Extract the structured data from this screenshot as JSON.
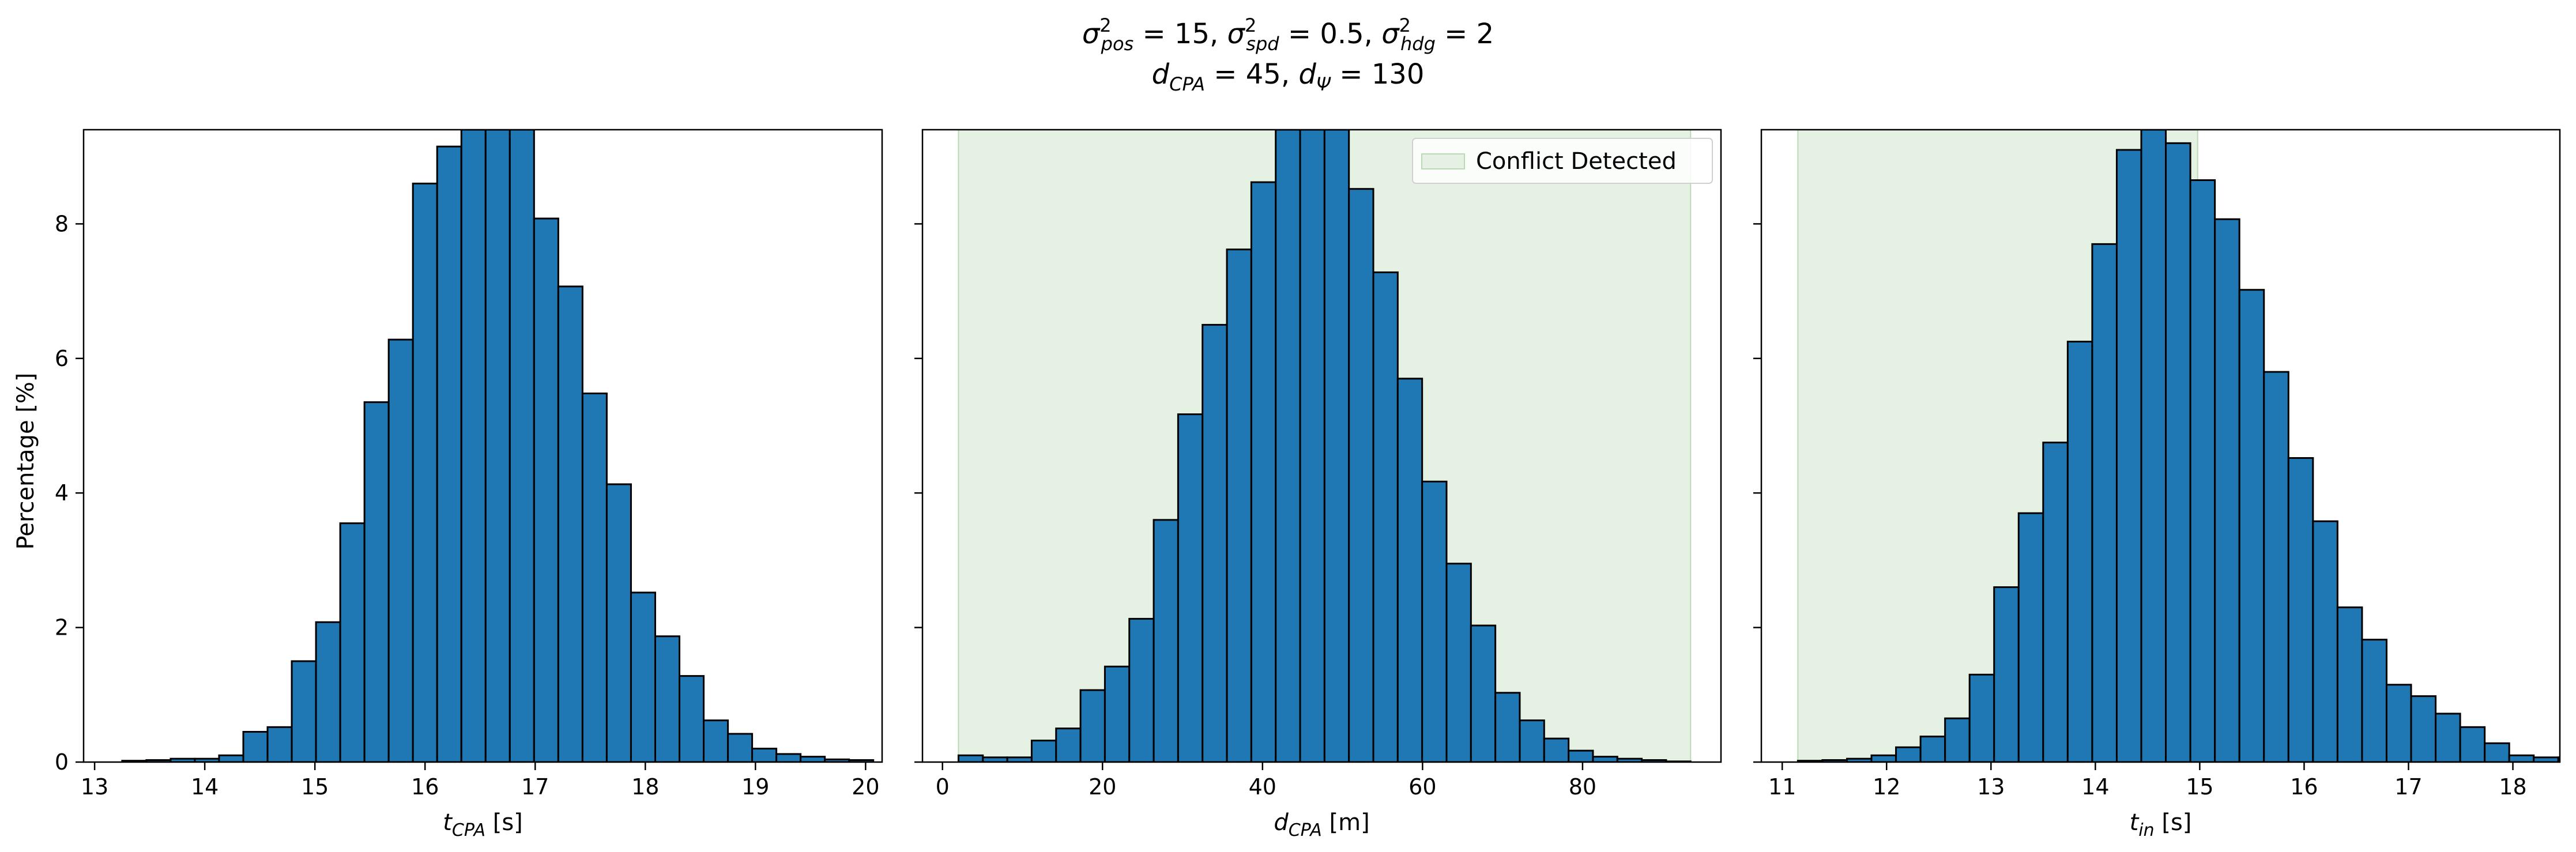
{
  "figure": {
    "title_line1_parts": [
      {
        "t": "σ",
        "s": "",
        "sup": "2",
        "sub": "pos",
        "after": " = 15, "
      },
      {
        "t": "σ",
        "s": "",
        "sup": "2",
        "sub": "spd",
        "after": " = 0.5, "
      },
      {
        "t": "σ",
        "s": "",
        "sup": "2",
        "sub": "hdg",
        "after": " = 2"
      }
    ],
    "title_line2": "d_CPA = 45, d_Ψ = 130",
    "ylabel": "Percentage [%]",
    "colors": {
      "bar": "#1f77b4",
      "edge": "#000000",
      "detected": "#e5f1e3",
      "detected_edge": "#b9dbb4"
    }
  },
  "chart_data": [
    {
      "type": "bar",
      "id": "tcpa",
      "xlabel_main": "t",
      "xlabel_sub": "CPA",
      "xlabel_unit": " [s]",
      "xlim": [
        12.9,
        20.15
      ],
      "ylim": [
        0,
        9.4
      ],
      "xticks": [
        13,
        14,
        15,
        16,
        17,
        18,
        19,
        20
      ],
      "yticks": [
        0,
        2,
        4,
        6,
        8
      ],
      "bin_start": 13.25,
      "bin_width": 0.22,
      "values": [
        0.02,
        0.03,
        0.05,
        0.05,
        0.1,
        0.45,
        0.52,
        1.5,
        2.08,
        3.55,
        5.35,
        6.28,
        8.6,
        9.15,
        9.4,
        9.4,
        9.4,
        8.08,
        7.07,
        5.48,
        4.13,
        2.52,
        1.87,
        1.28,
        0.62,
        0.42,
        0.2,
        0.12,
        0.08,
        0.04,
        0.03
      ],
      "shade": null,
      "legend": null
    },
    {
      "type": "bar",
      "id": "dcpa",
      "xlabel_main": "d",
      "xlabel_sub": "CPA",
      "xlabel_unit": " [m]",
      "xlim": [
        -2.5,
        97.3
      ],
      "ylim": [
        0,
        9.4
      ],
      "xticks": [
        0,
        20,
        40,
        60,
        80
      ],
      "yticks": [
        0,
        2,
        4,
        6,
        8
      ],
      "bin_start": 2.0,
      "bin_width": 3.05,
      "values": [
        0.1,
        0.07,
        0.07,
        0.32,
        0.5,
        1.07,
        1.42,
        2.13,
        3.6,
        5.17,
        6.5,
        7.62,
        8.62,
        9.4,
        9.4,
        9.4,
        8.52,
        7.28,
        5.7,
        4.17,
        2.95,
        2.03,
        1.03,
        0.62,
        0.35,
        0.17,
        0.08,
        0.05,
        0.03,
        0.01
      ],
      "shade": [
        2.0,
        93.5
      ],
      "legend": "Conflict Detected"
    },
    {
      "type": "bar",
      "id": "tin",
      "xlabel_main": "t",
      "xlabel_sub": "in",
      "xlabel_unit": " [s]",
      "xlim": [
        10.8,
        18.45
      ],
      "ylim": [
        0,
        9.4
      ],
      "xticks": [
        11,
        12,
        13,
        14,
        15,
        16,
        17,
        18
      ],
      "yticks": [
        0,
        2,
        4,
        6,
        8
      ],
      "bin_start": 11.15,
      "bin_width": 0.235,
      "values": [
        0.02,
        0.03,
        0.05,
        0.1,
        0.22,
        0.38,
        0.65,
        1.3,
        2.6,
        3.7,
        4.75,
        6.25,
        7.7,
        9.1,
        9.4,
        9.2,
        8.65,
        8.07,
        7.02,
        5.8,
        4.52,
        3.58,
        2.3,
        1.82,
        1.15,
        0.98,
        0.72,
        0.52,
        0.28,
        0.1,
        0.07,
        0.07
      ],
      "shade": [
        11.15,
        14.98
      ],
      "legend": null
    }
  ]
}
